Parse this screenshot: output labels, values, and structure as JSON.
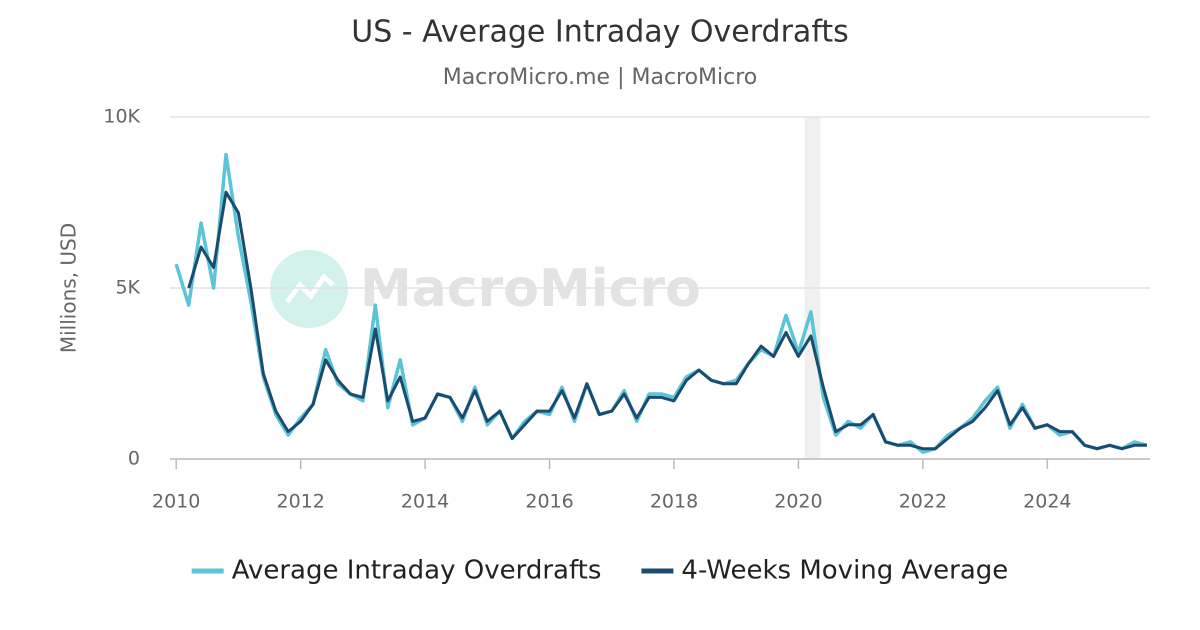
{
  "chart_data": {
    "type": "line",
    "title": "US - Average Intraday Overdrafts",
    "subtitle": "MacroMicro.me | MacroMicro",
    "watermark": "MacroMicro",
    "y_label": "Millions, USD",
    "x": [
      2010.0,
      2010.2,
      2010.4,
      2010.6,
      2010.8,
      2011.0,
      2011.2,
      2011.4,
      2011.6,
      2011.8,
      2012.0,
      2012.2,
      2012.4,
      2012.6,
      2012.8,
      2013.0,
      2013.2,
      2013.4,
      2013.6,
      2013.8,
      2014.0,
      2014.2,
      2014.4,
      2014.6,
      2014.8,
      2015.0,
      2015.2,
      2015.4,
      2015.6,
      2015.8,
      2016.0,
      2016.2,
      2016.4,
      2016.6,
      2016.8,
      2017.0,
      2017.2,
      2017.4,
      2017.6,
      2017.8,
      2018.0,
      2018.2,
      2018.4,
      2018.6,
      2018.8,
      2019.0,
      2019.2,
      2019.4,
      2019.6,
      2019.8,
      2020.0,
      2020.2,
      2020.4,
      2020.6,
      2020.8,
      2021.0,
      2021.2,
      2021.4,
      2021.6,
      2021.8,
      2022.0,
      2022.2,
      2022.4,
      2022.6,
      2022.8,
      2023.0,
      2023.2,
      2023.4,
      2023.6,
      2023.8,
      2024.0,
      2024.2,
      2024.4,
      2024.6,
      2024.8,
      2025.0,
      2025.2,
      2025.4,
      2025.6
    ],
    "series": [
      {
        "name": "Average Intraday Overdrafts",
        "color": "#5bc4d6",
        "values": [
          5700,
          4500,
          6900,
          5000,
          8900,
          6500,
          4600,
          2400,
          1300,
          700,
          1200,
          1600,
          3200,
          2200,
          1900,
          1700,
          4500,
          1500,
          2900,
          1000,
          1200,
          1900,
          1800,
          1100,
          2100,
          1000,
          1400,
          600,
          1100,
          1400,
          1300,
          2100,
          1100,
          2200,
          1300,
          1400,
          2000,
          1100,
          1900,
          1900,
          1800,
          2400,
          2600,
          2300,
          2200,
          2300,
          2800,
          3200,
          3000,
          4200,
          3100,
          4300,
          1800,
          700,
          1100,
          900,
          1300,
          500,
          400,
          500,
          200,
          300,
          700,
          900,
          1200,
          1700,
          2100,
          900,
          1600,
          900,
          1000,
          700,
          800,
          400,
          300,
          400,
          300,
          500,
          400
        ]
      },
      {
        "name": "4-Weeks Moving Average",
        "color": "#1b4b6e",
        "values": [
          null,
          5000,
          6200,
          5600,
          7800,
          7200,
          5000,
          2500,
          1400,
          800,
          1100,
          1600,
          2900,
          2300,
          1900,
          1800,
          3800,
          1700,
          2400,
          1100,
          1200,
          1900,
          1800,
          1200,
          2000,
          1100,
          1400,
          600,
          1000,
          1400,
          1400,
          2000,
          1200,
          2200,
          1300,
          1400,
          1900,
          1200,
          1800,
          1800,
          1700,
          2300,
          2600,
          2300,
          2200,
          2200,
          2800,
          3300,
          3000,
          3700,
          3000,
          3600,
          2100,
          800,
          1000,
          1000,
          1300,
          500,
          400,
          400,
          300,
          300,
          600,
          900,
          1100,
          1500,
          2000,
          1000,
          1500,
          900,
          1000,
          800,
          800,
          400,
          300,
          400,
          300,
          400,
          400
        ]
      }
    ],
    "shaded_region": [
      2020.1,
      2020.35
    ],
    "xlim": [
      2009.9,
      2025.65
    ],
    "xticks": [
      2010,
      2012,
      2014,
      2016,
      2018,
      2020,
      2022,
      2024
    ],
    "ylim": [
      0,
      10000
    ],
    "yticks": [
      0,
      {
        "value": 5000,
        "label": "5K"
      },
      {
        "value": 10000,
        "label": "10K"
      }
    ],
    "grid": true,
    "legend": "bottom"
  }
}
